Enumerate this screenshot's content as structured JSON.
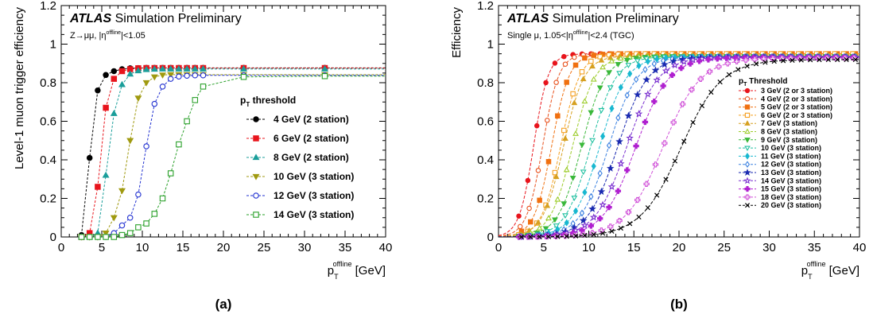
{
  "figure": {
    "panel_labels": [
      "(a)",
      "(b)"
    ]
  },
  "chart_data": [
    {
      "type": "line",
      "panel": "(a)",
      "experiment": "ATLAS",
      "status": "Simulation Preliminary",
      "selection": "Z→μμ, |ηoffline|<1.05",
      "selection_parts": [
        "Z→μμ, |η",
        "offline",
        "|<1.05"
      ],
      "ylabel": "Level-1 muon trigger efficiency",
      "xlabel": "p_T^offline [GeV]",
      "xlabel_parts": [
        "p",
        "T",
        "offline",
        " [GeV]"
      ],
      "xlim": [
        0,
        40
      ],
      "ylim": [
        0,
        1.2
      ],
      "xticks": [
        0,
        5,
        10,
        15,
        20,
        25,
        30,
        35,
        40
      ],
      "yticks": [
        0,
        0.2,
        0.4,
        0.6,
        0.8,
        1,
        1.2
      ],
      "ytick_labels": [
        "0",
        "0.2",
        "0.4",
        "0.6",
        "0.8",
        "1",
        "1.2"
      ],
      "legend_title": "pT threshold",
      "legend_title_parts": [
        "p",
        "T",
        " threshold"
      ],
      "legend_position": "right",
      "x": [
        2.5,
        3.5,
        4.5,
        5.5,
        6.5,
        7.5,
        8.5,
        9.5,
        10.5,
        11.5,
        12.5,
        13.5,
        14.5,
        15.5,
        16.5,
        17.5,
        22.5,
        32.5
      ],
      "series": [
        {
          "name": "4 GeV (2 station)",
          "color": "#000000",
          "marker": "circle-filled",
          "values": [
            0.01,
            0.41,
            0.76,
            0.84,
            0.86,
            0.87,
            0.875,
            0.876,
            0.877,
            0.877,
            0.877,
            0.877,
            0.877,
            0.877,
            0.877,
            0.877,
            0.877,
            0.877
          ]
        },
        {
          "name": "6 GeV (2 station)",
          "color": "#e8141c",
          "marker": "square-filled",
          "values": [
            0.0,
            0.02,
            0.26,
            0.67,
            0.82,
            0.86,
            0.87,
            0.875,
            0.876,
            0.876,
            0.876,
            0.876,
            0.876,
            0.876,
            0.876,
            0.876,
            0.876,
            0.876
          ]
        },
        {
          "name": "8 GeV (2 station)",
          "color": "#1a9e9a",
          "marker": "triangle-filled",
          "values": [
            0.0,
            0.0,
            0.02,
            0.32,
            0.64,
            0.79,
            0.845,
            0.862,
            0.868,
            0.87,
            0.871,
            0.871,
            0.871,
            0.871,
            0.871,
            0.871,
            0.871,
            0.871
          ]
        },
        {
          "name": "10 GeV (3 station)",
          "color": "#a09a10",
          "marker": "triangle-down-filled",
          "values": [
            0.0,
            0.0,
            0.0,
            0.02,
            0.1,
            0.24,
            0.5,
            0.72,
            0.8,
            0.83,
            0.84,
            0.842,
            0.842,
            0.842,
            0.842,
            0.842,
            0.842,
            0.842
          ]
        },
        {
          "name": "12 GeV (3 station)",
          "color": "#1f2fd0",
          "marker": "circle-open",
          "values": [
            0.0,
            0.0,
            0.0,
            0.0,
            0.02,
            0.06,
            0.1,
            0.22,
            0.47,
            0.69,
            0.78,
            0.82,
            0.832,
            0.836,
            0.838,
            0.838,
            0.838,
            0.838
          ]
        },
        {
          "name": "14 GeV (3 station)",
          "color": "#2aa02a",
          "marker": "square-open",
          "values": [
            0.0,
            0.0,
            0.0,
            0.0,
            0.0,
            0.01,
            0.02,
            0.05,
            0.07,
            0.12,
            0.2,
            0.33,
            0.48,
            0.6,
            0.71,
            0.78,
            0.83,
            0.834
          ]
        }
      ]
    },
    {
      "type": "line",
      "panel": "(b)",
      "experiment": "ATLAS",
      "status": "Simulation Preliminary",
      "selection": "Single μ, 1.05<|ηoffline|<2.4 (TGC)",
      "selection_parts": [
        "Single μ, 1.05<|η",
        "offline",
        "|<2.4 (TGC)"
      ],
      "ylabel": "Efficiency",
      "xlabel": "p_T^offline [GeV]",
      "xlabel_parts": [
        "p",
        "T",
        "offline",
        " [GeV]"
      ],
      "xlim": [
        0,
        40
      ],
      "ylim": [
        0,
        1.2
      ],
      "xticks": [
        0,
        5,
        10,
        15,
        20,
        25,
        30,
        35,
        40
      ],
      "yticks": [
        0,
        0.2,
        0.4,
        0.6,
        0.8,
        1,
        1.2
      ],
      "ytick_labels": [
        "0",
        "0.2",
        "0.4",
        "0.6",
        "0.8",
        "1",
        "1.2"
      ],
      "legend_title": "pT Threshold",
      "legend_title_parts": [
        "p",
        "T",
        " Threshold"
      ],
      "legend_position": "right",
      "series": [
        {
          "name": "3 GeV (2 or 3 station)",
          "color": "#e8141c",
          "marker": "circle-filled",
          "threshold": 3
        },
        {
          "name": "4 GeV (2 or 3 station)",
          "color": "#e8501c",
          "marker": "circle-open",
          "threshold": 4
        },
        {
          "name": "5 GeV (2 or 3 station)",
          "color": "#f07010",
          "marker": "square-filled",
          "threshold": 5
        },
        {
          "name": "6 GeV (2 or 3 station)",
          "color": "#f5a020",
          "marker": "square-open",
          "threshold": 6
        },
        {
          "name": "7 GeV (3 station)",
          "color": "#d6a020",
          "marker": "triangle-filled",
          "threshold": 7
        },
        {
          "name": "8 GeV (3 station)",
          "color": "#9ccc2a",
          "marker": "triangle-open",
          "threshold": 8
        },
        {
          "name": "9 GeV (3 station)",
          "color": "#3ab83a",
          "marker": "triangle-down-filled",
          "threshold": 9
        },
        {
          "name": "10 GeV (3 station)",
          "color": "#20c0a0",
          "marker": "triangle-down-open",
          "threshold": 10
        },
        {
          "name": "11 GeV (3 station)",
          "color": "#18b8d0",
          "marker": "diamond-filled",
          "threshold": 11
        },
        {
          "name": "12 GeV (3 station)",
          "color": "#3a80e0",
          "marker": "diamond-open",
          "threshold": 12
        },
        {
          "name": "13 GeV (3 station)",
          "color": "#1a2ab0",
          "marker": "star-filled",
          "threshold": 13
        },
        {
          "name": "14 GeV (3 station)",
          "color": "#7a30d0",
          "marker": "star-open",
          "threshold": 14
        },
        {
          "name": "15 GeV (3 station)",
          "color": "#b020d0",
          "marker": "cross-filled",
          "threshold": 15
        },
        {
          "name": "18 GeV (3 station)",
          "color": "#d050d8",
          "marker": "cross-open",
          "threshold": 18
        },
        {
          "name": "20 GeV (3 station)",
          "color": "#000000",
          "marker": "x",
          "threshold": 20
        }
      ]
    }
  ]
}
